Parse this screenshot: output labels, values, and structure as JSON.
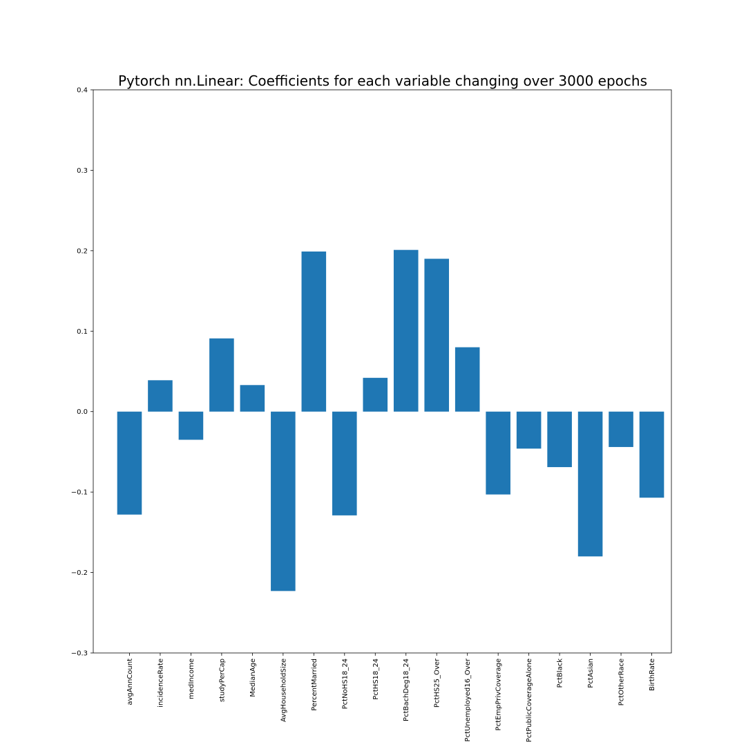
{
  "chart_data": {
    "type": "bar",
    "title": "Pytorch nn.Linear: Coefficients for each variable changing over 3000 epochs",
    "xlabel": "",
    "ylabel": "",
    "ylim": [
      -0.3,
      0.4
    ],
    "yticks": [
      -0.3,
      -0.2,
      -0.1,
      0.0,
      0.1,
      0.2,
      0.3,
      0.4
    ],
    "ytick_labels": [
      "−0.3",
      "−0.2",
      "−0.1",
      "0.0",
      "0.1",
      "0.2",
      "0.3",
      "0.4"
    ],
    "grid": false,
    "bar_color": "#1f77b4",
    "categories": [
      "avgAnnCount",
      "incidenceRate",
      "medIncome",
      "studyPerCap",
      "MedianAge",
      "AvgHouseholdSize",
      "PercentMarried",
      "PctNoHS18_24",
      "PctHS18_24",
      "PctBachDeg18_24",
      "PctHS25_Over",
      "PctUnemployed16_Over",
      "PctEmpPrivCoverage",
      "PctPublicCoverageAlone",
      "PctBlack",
      "PctAsian",
      "PctOtherRace",
      "BirthRate"
    ],
    "values": [
      -0.128,
      0.039,
      -0.035,
      0.091,
      0.033,
      -0.223,
      0.199,
      -0.129,
      0.042,
      0.201,
      0.19,
      0.08,
      -0.103,
      -0.046,
      -0.069,
      -0.18,
      -0.044,
      -0.107
    ]
  }
}
